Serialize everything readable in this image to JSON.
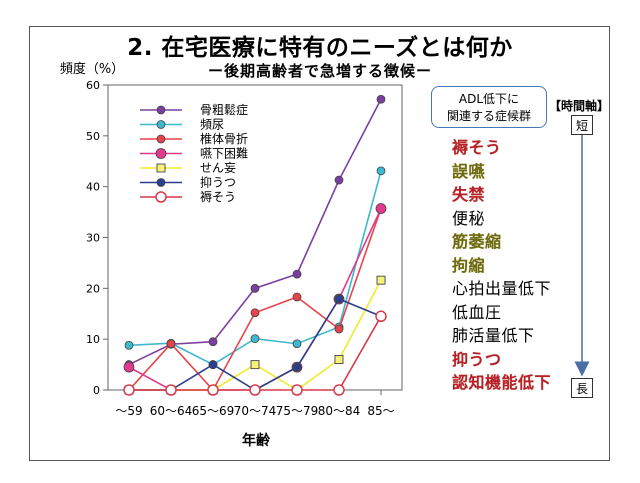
{
  "title": "2. 在宅医療に特有のニーズとは何か",
  "subtitle": "ー後期高齢者で急増する徴候ー",
  "adl_box": {
    "line1": "ADL低下に",
    "line2": "関連する症候群"
  },
  "time_axis": {
    "label": "【時間軸】",
    "short": "短",
    "long": "長"
  },
  "symptoms": [
    {
      "text": "褥そう",
      "style": "red"
    },
    {
      "text": "誤嚥",
      "style": "olive"
    },
    {
      "text": "失禁",
      "style": "red"
    },
    {
      "text": "便秘",
      "style": "black"
    },
    {
      "text": "筋萎縮",
      "style": "olive"
    },
    {
      "text": "拘縮",
      "style": "olive"
    },
    {
      "text": "心拍出量低下",
      "style": "black"
    },
    {
      "text": "低血圧",
      "style": "black"
    },
    {
      "text": "肺活量低下",
      "style": "black"
    },
    {
      "text": "抑うつ",
      "style": "red"
    },
    {
      "text": "認知機能低下",
      "style": "red"
    }
  ],
  "colors": {
    "arrow": "#4a6fa5",
    "frame": "#555555"
  },
  "chart_data": {
    "type": "line",
    "ylabel": "頻度（%）",
    "xlabel": "年齢",
    "categories": [
      "～59",
      "60～64",
      "65～69",
      "70～74",
      "75～79",
      "80～84",
      "85～"
    ],
    "ylim": [
      0,
      60
    ],
    "yticks": [
      0,
      10,
      20,
      30,
      40,
      50,
      60
    ],
    "grid": false,
    "legend_position": "top-left",
    "series": [
      {
        "name": "骨粗鬆症",
        "color": "#7b3fa0",
        "marker": "circle",
        "markerFill": "#7b3fa0",
        "values": [
          5,
          9,
          9.5,
          20,
          22.8,
          41.3,
          57.2
        ]
      },
      {
        "name": "頻尿",
        "color": "#3fb8cc",
        "marker": "circle",
        "markerFill": "#3fb8cc",
        "values": [
          8.8,
          9.2,
          5,
          10.1,
          9.1,
          12.4,
          43.1
        ]
      },
      {
        "name": "椎体骨折",
        "color": "#e8434b",
        "marker": "circle",
        "markerFill": "#e8434b",
        "values": [
          0,
          9.1,
          0,
          15.2,
          18.3,
          12,
          35.7
        ]
      },
      {
        "name": "嚥下困難",
        "color": "#e23a8e",
        "marker": "circle",
        "markerFill": "#e23a8e",
        "values": [
          4.5,
          0,
          0,
          0,
          4.5,
          17.9,
          35.7
        ]
      },
      {
        "name": "せん妄",
        "color": "#f2ea2a",
        "marker": "square",
        "markerFill": "#f7f07a",
        "values": [
          0,
          0,
          0,
          5,
          0,
          6,
          21.6
        ]
      },
      {
        "name": "抑うつ",
        "color": "#2a3f8f",
        "marker": "circle",
        "markerFill": "#2a3f8f",
        "values": [
          0,
          0,
          5,
          0,
          4.5,
          17.9,
          14.5
        ]
      },
      {
        "name": "褥そう",
        "color": "#d93a4a",
        "marker": "open-circle",
        "markerFill": "#ffffff",
        "values": [
          0,
          0,
          0,
          0,
          0,
          0,
          14.5
        ]
      }
    ]
  }
}
